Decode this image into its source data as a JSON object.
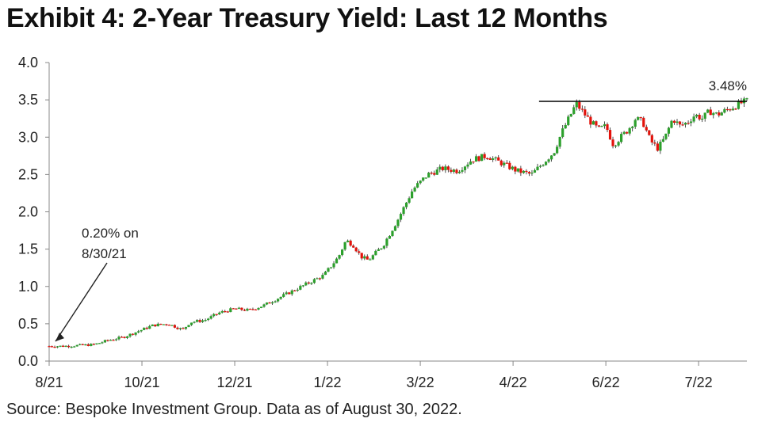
{
  "title": "Exhibit 4: 2-Year Treasury Yield: Last 12 Months",
  "source": "Source: Bespoke Investment Group. Data as of August 30, 2022.",
  "colors": {
    "up": "#2ca02c",
    "down": "#e3120b",
    "wick": "#222222",
    "axis": "#888888",
    "hline": "#000000"
  },
  "chart_data": {
    "type": "line",
    "style": "candlestick",
    "title": "Exhibit 4: 2-Year Treasury Yield: Last 12 Months",
    "xlabel": "",
    "ylabel": "",
    "ylim": [
      0.0,
      4.0
    ],
    "yticks": [
      "0.0",
      "0.5",
      "1.0",
      "1.5",
      "2.0",
      "2.5",
      "3.0",
      "3.5",
      "4.0"
    ],
    "xticks": [
      "8/21",
      "10/21",
      "12/21",
      "1/22",
      "3/22",
      "4/22",
      "6/22",
      "7/22"
    ],
    "grid": false,
    "x_index_range": [
      0,
      94
    ],
    "xtick_positions": [
      0,
      12.5,
      25,
      37.5,
      50,
      62.5,
      75,
      87.5
    ],
    "series": [
      {
        "name": "2-Year Treasury Yield",
        "x": [
          0,
          2,
          4,
          6,
          8,
          10,
          12,
          14,
          16,
          18,
          19,
          21,
          23,
          25,
          27,
          29,
          31,
          33,
          35,
          37,
          39,
          40,
          41,
          42,
          43,
          45,
          47,
          48,
          49,
          50,
          51,
          53,
          55,
          57,
          59,
          61,
          62,
          63,
          65,
          67,
          68,
          69,
          71,
          73,
          74,
          75,
          76,
          78,
          79,
          80,
          81,
          82,
          83,
          84,
          85,
          86,
          87,
          88,
          89,
          90,
          91,
          92,
          93,
          94
        ],
        "values": [
          0.2,
          0.2,
          0.21,
          0.22,
          0.28,
          0.32,
          0.4,
          0.48,
          0.5,
          0.42,
          0.52,
          0.55,
          0.65,
          0.7,
          0.68,
          0.75,
          0.85,
          0.95,
          1.05,
          1.15,
          1.4,
          1.62,
          1.55,
          1.4,
          1.35,
          1.55,
          1.9,
          2.1,
          2.3,
          2.4,
          2.5,
          2.58,
          2.55,
          2.7,
          2.75,
          2.65,
          2.6,
          2.55,
          2.5,
          2.7,
          2.8,
          3.05,
          3.45,
          3.2,
          3.1,
          3.15,
          2.9,
          3.1,
          3.25,
          3.2,
          2.95,
          2.85,
          3.0,
          3.25,
          3.15,
          3.2,
          3.3,
          3.25,
          3.35,
          3.3,
          3.35,
          3.4,
          3.45,
          3.48
        ]
      }
    ],
    "annotations": [
      {
        "text": "0.20% on",
        "text2": "8/30/21",
        "target_x": 0,
        "target_y": 0.2
      },
      {
        "text": "3.48%",
        "target_x": 94,
        "target_y": 3.48
      }
    ],
    "hline": {
      "y": 3.48,
      "x_start": 66,
      "x_end": 94
    }
  }
}
